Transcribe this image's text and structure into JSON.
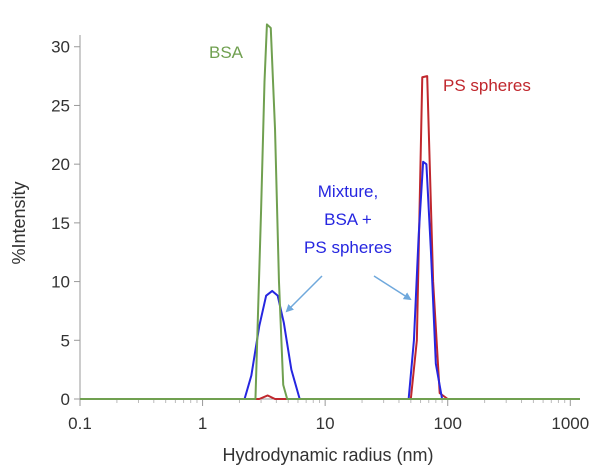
{
  "chart_data": {
    "type": "line",
    "xscale": "log",
    "xlabel": "Hydrodynamic radius (nm)",
    "ylabel": "%Intensity",
    "xlim": [
      0.1,
      1200
    ],
    "ylim": [
      0,
      31
    ],
    "xticks": [
      {
        "value": 0.1,
        "label": "0.1"
      },
      {
        "value": 1,
        "label": "1"
      },
      {
        "value": 10,
        "label": "10"
      },
      {
        "value": 100,
        "label": "100"
      },
      {
        "value": 1000,
        "label": "1000"
      }
    ],
    "yticks": [
      {
        "value": 0,
        "label": "0"
      },
      {
        "value": 5,
        "label": "5"
      },
      {
        "value": 10,
        "label": "10"
      },
      {
        "value": 15,
        "label": "15"
      },
      {
        "value": 20,
        "label": "20"
      },
      {
        "value": 25,
        "label": "25"
      },
      {
        "value": 30,
        "label": "30"
      }
    ],
    "series": [
      {
        "name": "PS spheres",
        "color": "#c0272d",
        "points": [
          [
            0.1,
            0
          ],
          [
            2.9,
            0
          ],
          [
            3.4,
            0.3
          ],
          [
            3.9,
            0
          ],
          [
            50,
            0
          ],
          [
            56,
            5
          ],
          [
            62,
            27.4
          ],
          [
            68,
            27.5
          ],
          [
            76,
            10
          ],
          [
            86,
            0.5
          ],
          [
            100,
            0
          ],
          [
            1200,
            0
          ]
        ]
      },
      {
        "name": "Mixture, BSA + PS spheres",
        "color": "#2626e0",
        "points": [
          [
            0.1,
            0
          ],
          [
            2.2,
            0
          ],
          [
            2.5,
            2
          ],
          [
            2.9,
            6.2
          ],
          [
            3.3,
            8.8
          ],
          [
            3.7,
            9.2
          ],
          [
            4.1,
            8.8
          ],
          [
            4.6,
            6.5
          ],
          [
            5.3,
            2.5
          ],
          [
            6.2,
            0
          ],
          [
            48,
            0
          ],
          [
            53,
            5
          ],
          [
            58,
            14
          ],
          [
            63,
            20.2
          ],
          [
            67,
            20
          ],
          [
            73,
            12.5
          ],
          [
            80,
            3
          ],
          [
            90,
            0
          ],
          [
            1200,
            0
          ]
        ]
      },
      {
        "name": "BSA",
        "color": "#70a050",
        "points": [
          [
            0.1,
            0
          ],
          [
            2.7,
            0
          ],
          [
            3.0,
            16
          ],
          [
            3.2,
            27
          ],
          [
            3.35,
            31.9
          ],
          [
            3.6,
            31.6
          ],
          [
            3.9,
            23
          ],
          [
            4.2,
            10
          ],
          [
            4.55,
            1.2
          ],
          [
            4.9,
            0
          ],
          [
            1200,
            0
          ]
        ]
      }
    ],
    "annotations": {
      "bsa": {
        "text": "BSA",
        "color": "#70a050"
      },
      "ps": {
        "text": "PS spheres",
        "color": "#c0272d"
      },
      "mixture": {
        "lines": [
          "Mixture,",
          "BSA +",
          "PS spheres"
        ],
        "color": "#2626e0"
      },
      "arrow_color": "#6fa8dc"
    }
  }
}
